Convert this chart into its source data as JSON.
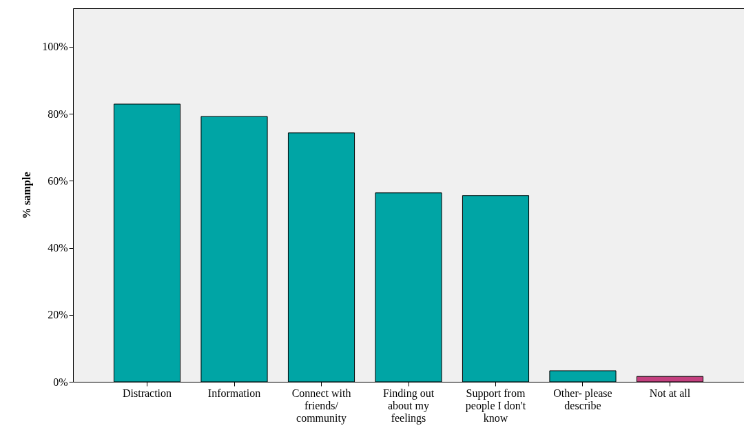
{
  "chart_data": {
    "type": "bar",
    "ylabel": "% sample",
    "categories": [
      "Distraction",
      "Information",
      "Connect with friends/ community",
      "Finding out about my feelings",
      "Support from people I don't know",
      "Other- please describe",
      "Not at all"
    ],
    "values": [
      82.9,
      79.2,
      74.3,
      56.4,
      55.6,
      3.3,
      1.6
    ],
    "colors": [
      "#00a5a5",
      "#00a5a5",
      "#00a5a5",
      "#00a5a5",
      "#00a5a5",
      "#00a5a5",
      "#c4407f"
    ],
    "ylim": [
      0,
      111.5
    ],
    "yticks": [
      {
        "value": 0,
        "label": "0%"
      },
      {
        "value": 20,
        "label": "20%"
      },
      {
        "value": 40,
        "label": "40%"
      },
      {
        "value": 60,
        "label": "60%"
      },
      {
        "value": 80,
        "label": "80%"
      },
      {
        "value": 100,
        "label": "100%"
      }
    ]
  }
}
